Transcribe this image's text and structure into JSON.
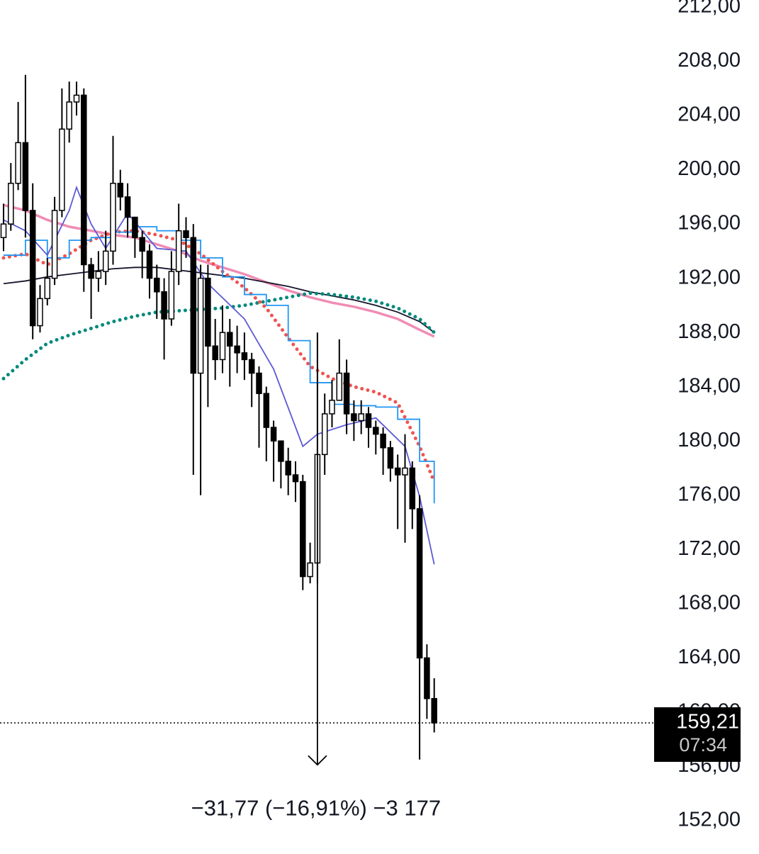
{
  "chart_data": {
    "type": "candlestick",
    "open": [
      195,
      196,
      199,
      202,
      197,
      188.5,
      190.5,
      192,
      197,
      203,
      205,
      205.5,
      193,
      192,
      192.5,
      194,
      199,
      198,
      196.5,
      195,
      194,
      192,
      191,
      189,
      192.5,
      195.5,
      195,
      185,
      192,
      187,
      186,
      188,
      187,
      186.5,
      186,
      185,
      183.5,
      181,
      180,
      178.5,
      177.5,
      177,
      170,
      171,
      179,
      182,
      183,
      185,
      182,
      181.5,
      182,
      181,
      180.5,
      179.5,
      178,
      177.5,
      178,
      175,
      164,
      161
    ],
    "high": [
      197.5,
      200.5,
      205,
      207,
      199,
      191.5,
      193.5,
      198,
      206,
      206.5,
      206.5,
      206,
      193.5,
      194,
      195.5,
      202.5,
      200,
      199,
      196.5,
      195.5,
      194.5,
      193,
      192,
      194,
      197.5,
      196.5,
      196,
      193,
      193,
      189,
      190,
      189,
      188.5,
      188,
      186.5,
      185.5,
      184,
      181.5,
      180,
      179.5,
      178.5,
      177.5,
      172.5,
      188,
      183.5,
      184.5,
      187.5,
      186,
      183,
      183,
      182.5,
      181.5,
      181,
      180,
      179,
      180.5,
      178.5,
      176,
      165,
      162.5
    ],
    "low": [
      194,
      195.5,
      198.5,
      195,
      187.5,
      188,
      190,
      191.5,
      196.5,
      202,
      204,
      191,
      189,
      191,
      191.5,
      193,
      197,
      195,
      193.5,
      192,
      190.5,
      189,
      186,
      188.5,
      191.5,
      193.5,
      177.5,
      176,
      182.5,
      184.5,
      185,
      184,
      185,
      184.5,
      182.5,
      179.5,
      178.5,
      177,
      176.5,
      176,
      175.5,
      169,
      169.5,
      169.5,
      177.5,
      181,
      183,
      180.5,
      180,
      180.5,
      179.5,
      179,
      177.5,
      177,
      173.5,
      172.5,
      173.5,
      156.5,
      159.5,
      158.5
    ],
    "close": [
      196,
      199,
      202,
      197,
      188.5,
      190.5,
      192,
      197,
      203,
      205,
      205.5,
      193,
      192,
      192.5,
      194,
      199,
      198,
      196.5,
      195,
      194,
      192,
      191,
      189,
      192.5,
      195.5,
      195,
      185,
      192,
      187,
      186,
      188,
      187,
      186.5,
      186,
      185,
      183.5,
      181,
      180,
      178.5,
      177.5,
      177,
      170,
      171,
      179,
      182,
      183,
      185,
      182,
      181.5,
      182,
      181,
      180.5,
      179.5,
      178,
      177.5,
      178,
      175,
      164,
      161,
      159.21
    ],
    "overlays": [
      {
        "style": "line",
        "color": "#f08cb4",
        "x": [
          0,
          3,
          6,
          9,
          12,
          15,
          18,
          21,
          24,
          27,
          30,
          33,
          36,
          39,
          42,
          45,
          48,
          51,
          54,
          57,
          59
        ],
        "values": [
          197.4,
          197,
          196.3,
          195.8,
          195.5,
          195.2,
          195,
          194.5,
          194,
          193.3,
          192.8,
          192.3,
          191.7,
          191.1,
          190.6,
          190.2,
          189.9,
          189.5,
          189,
          188.2,
          187.7
        ]
      },
      {
        "style": "line",
        "color": "#15132b",
        "x": [
          0,
          3,
          6,
          9,
          12,
          15,
          18,
          21,
          24,
          27,
          30,
          33,
          36,
          39,
          42,
          45,
          48,
          51,
          54,
          57,
          59
        ],
        "values": [
          191.6,
          191.8,
          192.1,
          192.3,
          192.5,
          192.7,
          192.8,
          192.8,
          192.6,
          192.4,
          192.2,
          192,
          191.7,
          191.4,
          191,
          190.7,
          190.4,
          190,
          189.5,
          188.8,
          188
        ]
      },
      {
        "style": "dots",
        "color": "#00897b",
        "x": [
          0,
          3,
          6,
          9,
          12,
          15,
          18,
          21,
          24,
          27,
          30,
          33,
          36,
          39,
          42,
          45,
          48,
          51,
          54,
          57,
          59
        ],
        "values": [
          184.6,
          186,
          187.2,
          187.8,
          188.3,
          188.8,
          189.2,
          189.5,
          189.6,
          189.7,
          189.8,
          190,
          190.3,
          190.6,
          190.9,
          190.8,
          190.6,
          190.3,
          189.8,
          189,
          188
        ]
      },
      {
        "style": "dots",
        "color": "#ef5350",
        "x": [
          0,
          3,
          6,
          9,
          12,
          15,
          18,
          21,
          24,
          27,
          30,
          33,
          36,
          39,
          42,
          45,
          48,
          51,
          54,
          57,
          59
        ],
        "values": [
          193.5,
          193.8,
          193,
          193.8,
          194.8,
          195.4,
          195.5,
          195.2,
          194.8,
          193.8,
          192.5,
          191.3,
          189.8,
          187.6,
          185.5,
          184.6,
          184,
          183.6,
          182.8,
          179.6,
          177
        ]
      },
      {
        "style": "step",
        "color": "#2196f3",
        "x": [
          0,
          3,
          6,
          9,
          12,
          15,
          18,
          21,
          24,
          27,
          30,
          33,
          36,
          39,
          42,
          45,
          48,
          51,
          54,
          57,
          59
        ],
        "values": [
          193.7,
          194.8,
          193.5,
          194.8,
          195,
          195.4,
          195.8,
          195.5,
          194.8,
          193.5,
          192.1,
          190.8,
          190,
          187.4,
          184.3,
          182.7,
          182.6,
          182.5,
          181.6,
          178.5,
          175.4
        ]
      },
      {
        "style": "line",
        "color": "#5b5bd6",
        "x": [
          0,
          3,
          6,
          9,
          10,
          12,
          14,
          17,
          21,
          25,
          28,
          33,
          37,
          41,
          43,
          47,
          51,
          55,
          57,
          59
        ],
        "values": [
          196.3,
          195.5,
          193.7,
          197,
          198.7,
          196,
          194.2,
          196.8,
          194.2,
          194,
          191.6,
          189,
          185.3,
          179.6,
          180.5,
          181.2,
          181.7,
          179.6,
          175.9,
          170.9
        ]
      }
    ],
    "ylim": [
      149.8,
      212.52
    ],
    "yticks": [
      {
        "value": 212,
        "label": "212,00"
      },
      {
        "value": 208,
        "label": "208,00"
      },
      {
        "value": 204,
        "label": "204,00"
      },
      {
        "value": 200,
        "label": "200,00"
      },
      {
        "value": 196,
        "label": "196,00"
      },
      {
        "value": 192,
        "label": "192,00"
      },
      {
        "value": 188,
        "label": "188,00"
      },
      {
        "value": 184,
        "label": "184,00"
      },
      {
        "value": 180,
        "label": "180,00"
      },
      {
        "value": 176,
        "label": "176,00"
      },
      {
        "value": 172,
        "label": "172,00"
      },
      {
        "value": 168,
        "label": "168,00"
      },
      {
        "value": 164,
        "label": "164,00"
      },
      {
        "value": 160,
        "label": "160,00"
      },
      {
        "value": 156,
        "label": "156,00"
      },
      {
        "value": 152,
        "label": "152,00"
      }
    ],
    "price_line": {
      "value": 159.21,
      "label": "159,21",
      "time": "07:34"
    },
    "measure": {
      "x": 43,
      "from": 187.88,
      "to": 156.11,
      "label": "−31,77 (−16,91%) −3 177"
    }
  }
}
